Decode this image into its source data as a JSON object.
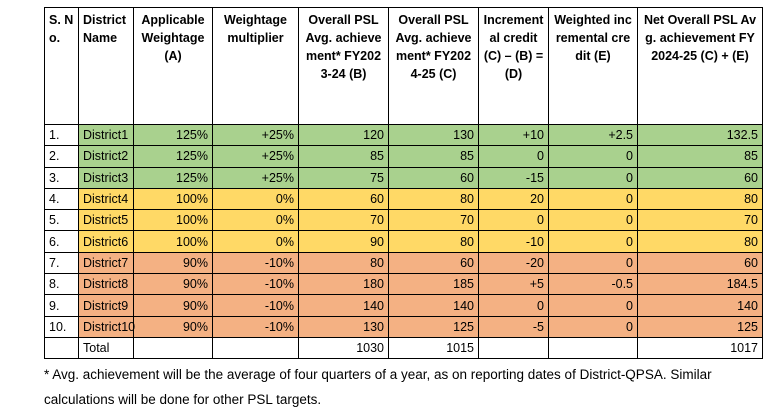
{
  "table": {
    "header": [
      "S. No.",
      "District Name",
      "Applicable Weightage (A)",
      "Weightage multiplier",
      "Overall PSL Avg. achievement* FY2023-24 (B)",
      "Overall PSL Avg. achievement* FY2024-25 (C)",
      "Incremental credit (C) – (B) = (D)",
      "Weighted incremental credit (E)",
      "Net Overall PSL Avg. achievement FY2024-25 (C) + (E)"
    ],
    "rows": [
      [
        "1.",
        "District1",
        "125%",
        "+25%",
        "120",
        "130",
        "+10",
        "+2.5",
        "132.5"
      ],
      [
        "2.",
        "District2",
        "125%",
        "+25%",
        "85",
        "85",
        "0",
        "0",
        "85"
      ],
      [
        "3.",
        "District3",
        "125%",
        "+25%",
        "75",
        "60",
        "-15",
        "0",
        "60"
      ],
      [
        "4.",
        "District4",
        "100%",
        "0%",
        "60",
        "80",
        "20",
        "0",
        "80"
      ],
      [
        "5.",
        "District5",
        "100%",
        "0%",
        "70",
        "70",
        "0",
        "0",
        "70"
      ],
      [
        "6.",
        "District6",
        "100%",
        "0%",
        "90",
        "80",
        "-10",
        "0",
        "80"
      ],
      [
        "7.",
        "District7",
        "90%",
        "-10%",
        "80",
        "60",
        "-20",
        "0",
        "60"
      ],
      [
        "8.",
        "District8",
        "90%",
        "-10%",
        "180",
        "185",
        "+5",
        "-0.5",
        "184.5"
      ],
      [
        "9.",
        "District9",
        "90%",
        "-10%",
        "140",
        "140",
        "0",
        "0",
        "140"
      ],
      [
        "10.",
        "District10",
        "90%",
        "-10%",
        "130",
        "125",
        "-5",
        "0",
        "125"
      ]
    ],
    "row_colors": [
      "#a9d18e",
      "#a9d18e",
      "#a9d18e",
      "#ffd966",
      "#ffd966",
      "#ffd966",
      "#f4b183",
      "#f4b183",
      "#f4b183",
      "#f4b183"
    ],
    "total": {
      "label": "Total",
      "fy2023_24": 1030,
      "fy2024_25": 1015,
      "net": 1017
    }
  },
  "footnote": "* Avg. achievement will be the average of four quarters of a year, as on reporting dates of District-QPSA. Similar calculations will be done for other PSL targets."
}
